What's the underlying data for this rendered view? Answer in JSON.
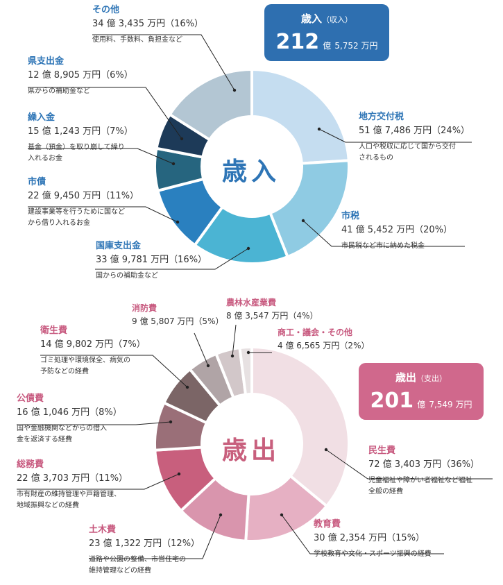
{
  "chart_data": [
    {
      "type": "pie",
      "center_label": "歳入",
      "title": "歳入",
      "title_sub": "（収入）",
      "total_big": "212",
      "total_unit": "億",
      "total_rest": "5,752 万円",
      "accent": "#2e6fb0",
      "series": [
        {
          "name": "地方交付税",
          "amount": "51 億 7,486 万円（24%）",
          "value": 24,
          "desc": "人口や税収に応じて国から交付\nされるもの",
          "color": "#c5ddf0"
        },
        {
          "name": "市税",
          "amount": "41 億 5,452 万円（20%）",
          "value": 20,
          "desc": "市民税など市に納めた税金",
          "color": "#8fcbe3"
        },
        {
          "name": "国庫支出金",
          "amount": "33 億 9,781 万円（16%）",
          "value": 16,
          "desc": "国からの補助金など",
          "color": "#4bb4d3"
        },
        {
          "name": "市債",
          "amount": "22 億 9,450 万円（11%）",
          "value": 11,
          "desc": "建設事業等を行うために国など\nから借り入れるお金",
          "color": "#2a80bf"
        },
        {
          "name": "繰入金",
          "amount": "15 億 1,243 万円（7%）",
          "value": 7,
          "desc": "基金（預金）を取り崩して繰り\n入れるお金",
          "color": "#26657f"
        },
        {
          "name": "県支出金",
          "amount": "12 億 8,905 万円（6%）",
          "value": 6,
          "desc": "県からの補助金など",
          "color": "#1d3a58"
        },
        {
          "name": "その他",
          "amount": "34 億 3,435 万円（16%）",
          "value": 16,
          "desc": "使用料、手数料、負担金など",
          "color": "#b3c6d3"
        }
      ]
    },
    {
      "type": "pie",
      "center_label": "歳出",
      "title": "歳出",
      "title_sub": "（支出）",
      "total_big": "201",
      "total_unit": "億",
      "total_rest": "7,549 万円",
      "accent": "#d0688c",
      "series": [
        {
          "name": "民生費",
          "amount": "72 億 3,403 万円（36%）",
          "value": 36,
          "desc": "児童福祉や障がい者福祉など福祉\n全般の経費",
          "color": "#f1dfe4"
        },
        {
          "name": "教育費",
          "amount": "30 億 2,354 万円（15%）",
          "value": 15,
          "desc": "学校教育や文化・スポーツ振興の経費",
          "color": "#e6b0c3"
        },
        {
          "name": "土木費",
          "amount": "23 億 1,322 万円（12%）",
          "value": 12,
          "desc": "道路や公園の整備、市営住宅の\n維持管理などの経費",
          "color": "#d995ad"
        },
        {
          "name": "総務費",
          "amount": "22 億 3,703 万円（11%）",
          "value": 11,
          "desc": "市有財産の維持管理や戸籍管理、\n地域振興などの経費",
          "color": "#c85f7d"
        },
        {
          "name": "公債費",
          "amount": "16 億 1,046 万円（8%）",
          "value": 8,
          "desc": "国や金融機関などからの借入\n金を返済する経費",
          "color": "#9a6f78"
        },
        {
          "name": "衛生費",
          "amount": "14 億 9,802 万円（7%）",
          "value": 7,
          "desc": "ゴミ処理や環境保全、病気の\n予防などの経費",
          "color": "#7b6566"
        },
        {
          "name": "消防費",
          "amount": "9 億 5,807 万円（5%）",
          "value": 5,
          "desc": "",
          "color": "#b0a4a6"
        },
        {
          "name": "農林水産業費",
          "amount": "8 億 3,547 万円（4%）",
          "value": 4,
          "desc": "",
          "color": "#d2c7c9"
        },
        {
          "name": "商工・議会・その他",
          "amount": "4 億 6,565 万円（2%）",
          "value": 2,
          "desc": "",
          "color": "#e7e1e2"
        }
      ]
    }
  ]
}
